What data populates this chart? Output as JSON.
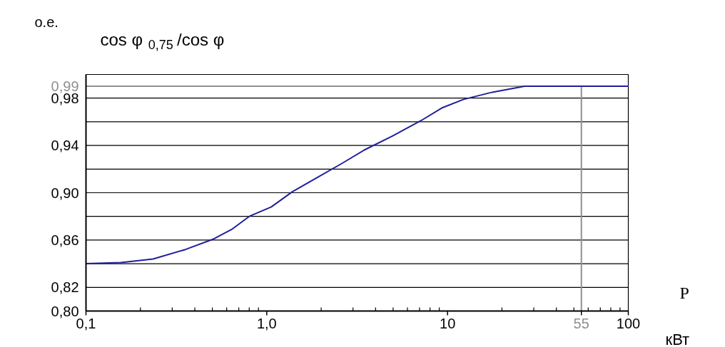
{
  "chart_data": {
    "type": "line",
    "title": "cos φ$_{0,75}$ /cos φ",
    "ylabel": "о.е.",
    "xlabel": "P",
    "annotations": [
      "кВт"
    ],
    "log": "x",
    "xlim": [
      0.1,
      100
    ],
    "ylim": [
      0.8,
      1.0
    ],
    "xticks": [
      {
        "value": 0.1,
        "label": "0,1"
      },
      {
        "value": 1,
        "label": "1,0"
      },
      10,
      55,
      100
    ],
    "yticks": [
      {
        "value": 0.8,
        "label": "0,80"
      },
      {
        "value": 0.82,
        "label": "0,82"
      },
      {
        "value": 0.84,
        "label": null
      },
      {
        "value": 0.86,
        "label": "0,86"
      },
      {
        "value": 0.88,
        "label": null
      },
      {
        "value": 0.9,
        "label": "0,90"
      },
      {
        "value": 0.92,
        "label": null
      },
      {
        "value": 0.94,
        "label": "0,94"
      },
      {
        "value": 0.96,
        "label": null
      },
      {
        "value": 0.98,
        "label": "0,98"
      },
      {
        "value": 1.0,
        "label": null
      }
    ],
    "grid": "y",
    "marker": "none",
    "line_style": "solid",
    "ref_lines": [
      {
        "axis": "y",
        "value": 0.99,
        "label": "0,99",
        "color": "#909090"
      },
      {
        "axis": "x",
        "value": 55,
        "label": null,
        "color": "#909090"
      }
    ],
    "series": [
      {
        "color": "#1f1f9c",
        "x": [
          0.1,
          0.156,
          0.235,
          0.355,
          0.51,
          0.64,
          0.8,
          1.06,
          1.39,
          1.91,
          2.62,
          3.45,
          4.96,
          7.14,
          9.4,
          12.3,
          17.7,
          26.7,
          100
        ],
        "values": [
          0.84,
          0.841,
          0.844,
          0.852,
          0.861,
          0.869,
          0.88,
          0.888,
          0.901,
          0.913,
          0.925,
          0.936,
          0.948,
          0.961,
          0.972,
          0.979,
          0.985,
          0.99,
          0.99
        ]
      }
    ]
  }
}
